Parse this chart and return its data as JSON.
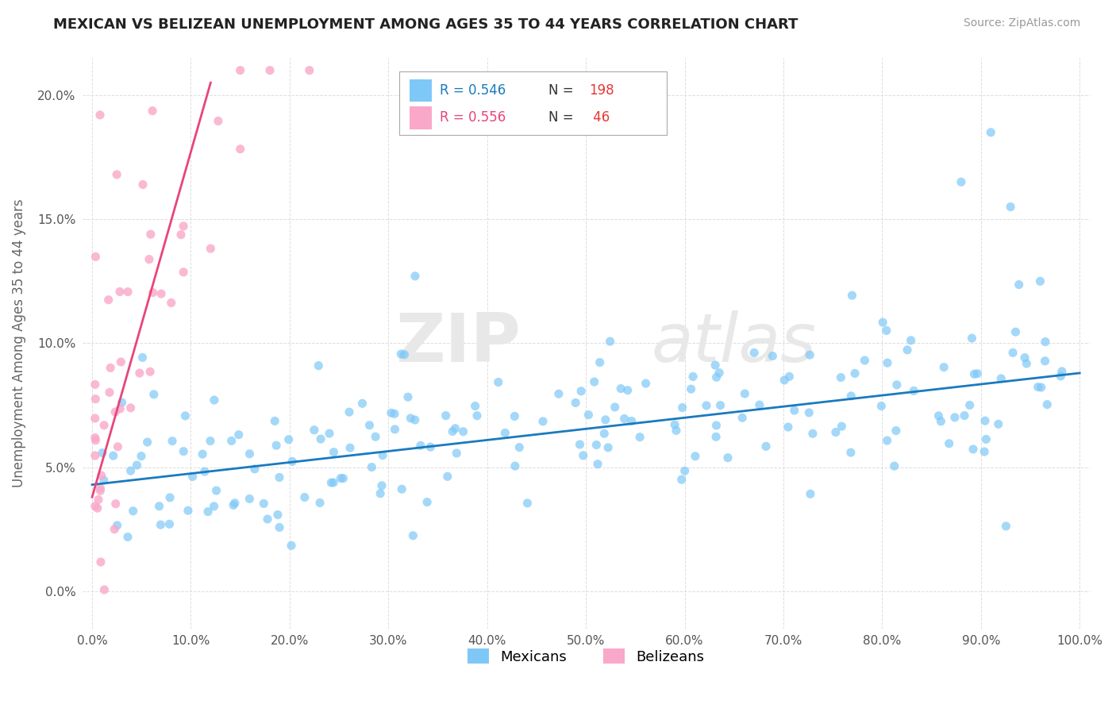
{
  "title": "MEXICAN VS BELIZEAN UNEMPLOYMENT AMONG AGES 35 TO 44 YEARS CORRELATION CHART",
  "source_text": "Source: ZipAtlas.com",
  "ylabel": "Unemployment Among Ages 35 to 44 years",
  "xlabel": "",
  "xlim": [
    -1,
    101
  ],
  "ylim": [
    -1.5,
    21.5
  ],
  "xticks": [
    0,
    10,
    20,
    30,
    40,
    50,
    60,
    70,
    80,
    90,
    100
  ],
  "yticks": [
    0,
    5,
    10,
    15,
    20
  ],
  "ytick_labels": [
    "0.0%",
    "5.0%",
    "10.0%",
    "15.0%",
    "20.0%"
  ],
  "xtick_labels": [
    "0.0%",
    "10.0%",
    "20.0%",
    "30.0%",
    "40.0%",
    "50.0%",
    "60.0%",
    "70.0%",
    "80.0%",
    "90.0%",
    "100.0%"
  ],
  "mexican_color": "#7ec8f7",
  "belizean_color": "#f9a8c9",
  "mexican_line_color": "#1a7abf",
  "belizean_line_color": "#e8457a",
  "R_mexican": 0.546,
  "N_mexican": 198,
  "R_belizean": 0.556,
  "N_belizean": 46,
  "legend_R_mex_color": "#1a7abf",
  "legend_R_bel_color": "#e8457a",
  "legend_N_color": "#e53935",
  "watermark_zip": "ZIP",
  "watermark_atlas": "atlas",
  "background_color": "#ffffff",
  "grid_color": "#dddddd",
  "mex_line_x0": 0,
  "mex_line_y0": 4.3,
  "mex_line_x1": 100,
  "mex_line_y1": 8.8,
  "bel_line_x0": 0,
  "bel_line_y0": 3.8,
  "bel_line_x1": 12,
  "bel_line_y1": 20.5
}
